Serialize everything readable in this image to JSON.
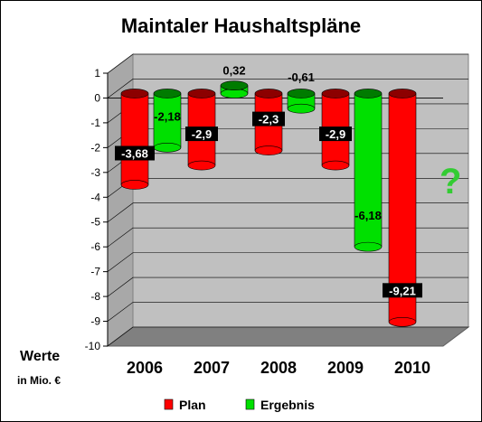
{
  "chart_data": {
    "type": "bar",
    "title": "Maintaler Haushaltspläne",
    "ylabel": "Werte",
    "yunit": "in Mio. €",
    "categories": [
      "2006",
      "2007",
      "2008",
      "2009",
      "2010"
    ],
    "ylim": [
      -10,
      1
    ],
    "yticks": [
      "1",
      "0",
      "-1",
      "-2",
      "-3",
      "-4",
      "-5",
      "-6",
      "-7",
      "-8",
      "-9",
      "-10"
    ],
    "series": [
      {
        "name": "Plan",
        "color": "#ff0000",
        "values": [
          -3.68,
          -2.9,
          -2.3,
          -2.9,
          -9.21
        ],
        "labels": [
          "-3,68",
          "-2,9",
          "-2,3",
          "-2,9",
          "-9,21"
        ]
      },
      {
        "name": "Ergebnis",
        "color": "#00e000",
        "values": [
          -2.18,
          0.32,
          -0.61,
          -6.18,
          null
        ],
        "labels": [
          "-2,18",
          "0,32",
          "-0,61",
          "-6,18",
          ""
        ]
      }
    ],
    "annotation": {
      "text": "?",
      "color": "#33cc33"
    },
    "legend": "bottom",
    "grid": true
  }
}
